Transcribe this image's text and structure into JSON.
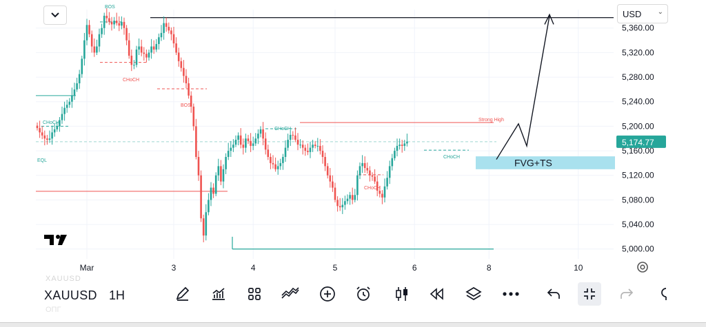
{
  "chart_data": {
    "type": "candlestick",
    "symbol": "XAUUSD",
    "interval": "1H",
    "currency": "USD",
    "y_ticks": [
      5360,
      5320,
      5280,
      5240,
      5200,
      5160,
      5120,
      5080,
      5040,
      5000
    ],
    "y_tick_labels": [
      "5,360.00",
      "5,320.00",
      "5,280.00",
      "5,240.00",
      "5,200.00",
      "5,160.00",
      "5,120.00",
      "5,080.00",
      "5,040.00",
      "5,000.00"
    ],
    "ylim": [
      4984,
      5390
    ],
    "x_ticks": [
      "Mar",
      "3",
      "4",
      "5",
      "6",
      "8",
      "10"
    ],
    "x_tick_index": [
      20,
      55,
      87,
      120,
      152,
      182,
      218
    ],
    "last_price": 5174.77,
    "last_price_label": "5,174.77",
    "up_color": "#26a69a",
    "down_color": "#ef5350",
    "price_path": [
      5197,
      5190,
      5185,
      5180,
      5178,
      5180,
      5190,
      5195,
      5200,
      5210,
      5220,
      5230,
      5235,
      5240,
      5250,
      5260,
      5270,
      5285,
      5310,
      5340,
      5365,
      5350,
      5330,
      5320,
      5330,
      5350,
      5360,
      5380,
      5376,
      5370,
      5366,
      5372,
      5368,
      5364,
      5370,
      5360,
      5340,
      5315,
      5300,
      5300,
      5325,
      5330,
      5320,
      5318,
      5312,
      5320,
      5330,
      5325,
      5334,
      5345,
      5352,
      5368,
      5362,
      5356,
      5350,
      5335,
      5320,
      5306,
      5295,
      5282,
      5270,
      5250,
      5232,
      5200,
      5150,
      5120,
      5050,
      5022,
      5060,
      5080,
      5100,
      5090,
      5120,
      5135,
      5110,
      5130,
      5150,
      5160,
      5165,
      5170,
      5178,
      5185,
      5170,
      5165,
      5180,
      5176,
      5168,
      5172,
      5180,
      5188,
      5195,
      5180,
      5162,
      5150,
      5140,
      5138,
      5130,
      5135,
      5140,
      5150,
      5165,
      5178,
      5186,
      5185,
      5178,
      5170,
      5170,
      5165,
      5160,
      5158,
      5165,
      5170,
      5168,
      5168,
      5160,
      5150,
      5135,
      5120,
      5110,
      5100,
      5080,
      5070,
      5068,
      5072,
      5078,
      5082,
      5088,
      5080,
      5088,
      5120,
      5135,
      5140,
      5132,
      5128,
      5120,
      5118,
      5110,
      5095,
      5090,
      5084,
      5102,
      5116,
      5135,
      5148,
      5160,
      5168,
      5170,
      5168,
      5172,
      5175
    ],
    "annotations": [
      "BOS",
      "CHoCH",
      "BOS",
      "CHoCH",
      "EQL",
      "CHoCH",
      "CHoCH",
      "CHoCH",
      "Strong High"
    ],
    "levels": {
      "top_line": 5377,
      "strong_high": 5206,
      "low_red": 5094,
      "bottom_teal": 5000,
      "teal_left": 5250
    },
    "fvg_zone": [
      5130,
      5151
    ],
    "fvg_label": "FVG+TS"
  },
  "toolbar": {
    "symbol": "XAUUSD",
    "symbol_ghost": "XAUUSD",
    "symbol_ghost2": "ΟΠΓ",
    "interval": "1H",
    "currency_label": "USD",
    "icons": [
      "pencil-icon",
      "indicators-icon",
      "grid-icon",
      "trend-icon",
      "add-icon",
      "alarm-icon",
      "candle-icon",
      "replay-icon",
      "layers-icon",
      "more-icon",
      "undo-icon",
      "collapse-icon",
      "redo-icon",
      "brush-icon"
    ]
  }
}
